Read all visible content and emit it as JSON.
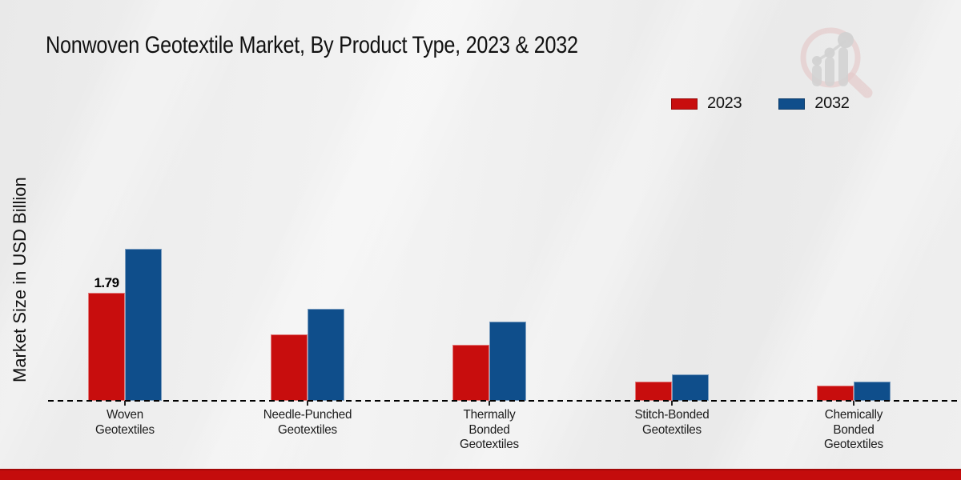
{
  "header": {
    "title": "Nonwoven Geotextile Market, By Product Type, 2023 & 2032"
  },
  "watermark": {
    "name": "market-research-magnifier-logo"
  },
  "colors": {
    "series_2023": "#c80d0d",
    "series_2032": "#0f4e8b",
    "footer_strip": "#c40c0c",
    "background": "#ededed",
    "baseline": "#000000"
  },
  "chart_data": {
    "type": "bar",
    "title": "Nonwoven Geotextile Market, By Product Type, 2023 & 2032",
    "xlabel": "",
    "ylabel": "Market Size in USD Billion",
    "categories": [
      "Woven\nGeotextiles",
      "Needle-Punched\nGeotextiles",
      "Thermally\nBonded\nGeotextiles",
      "Stitch-Bonded\nGeotextiles",
      "Chemically\nBonded\nGeotextiles"
    ],
    "series": [
      {
        "name": "2023",
        "color": "#c80d0d",
        "values": [
          1.79,
          1.1,
          0.93,
          0.32,
          0.25
        ]
      },
      {
        "name": "2032",
        "color": "#0f4e8b",
        "values": [
          2.52,
          1.53,
          1.31,
          0.44,
          0.32
        ]
      }
    ],
    "data_labels": [
      {
        "series_index": 0,
        "category_index": 0,
        "text": "1.79"
      }
    ],
    "ylim": [
      0,
      3
    ],
    "grid": false,
    "legend_position": "top-right",
    "baseline_style": "dashed"
  }
}
